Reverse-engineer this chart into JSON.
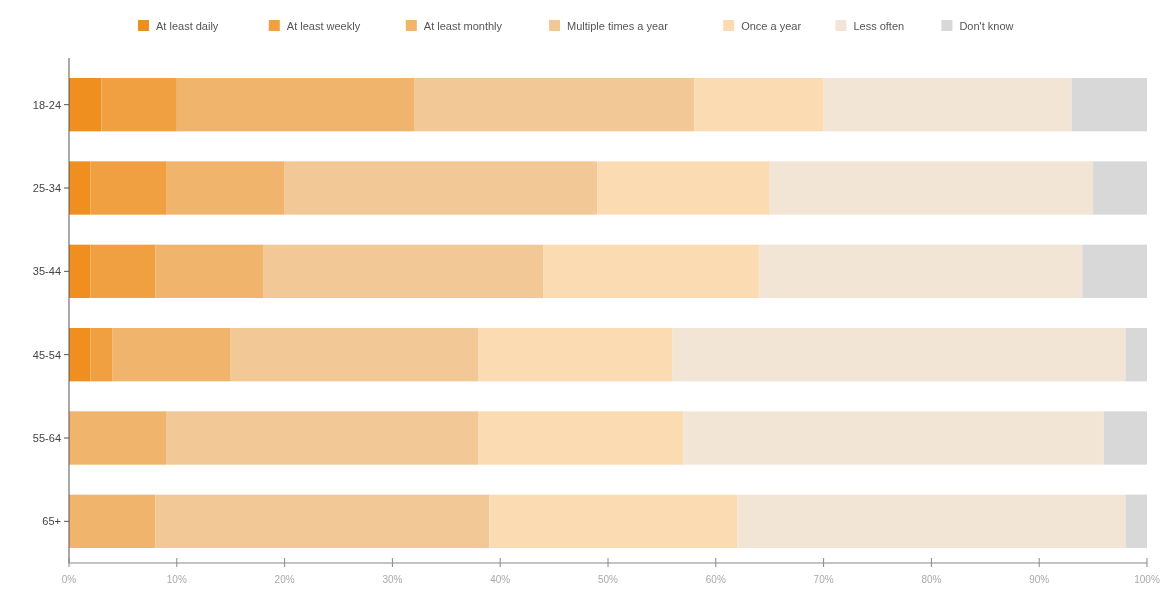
{
  "chart_data": {
    "type": "bar",
    "orientation": "horizontal",
    "stacked": true,
    "categories": [
      "18-24",
      "25-34",
      "35-44",
      "45-54",
      "55-64",
      "65+"
    ],
    "series": [
      {
        "name": "At least daily",
        "color": "#ef8f1f",
        "values": [
          3,
          2,
          2,
          2,
          0,
          0
        ]
      },
      {
        "name": "At least weekly",
        "color": "#f0a040",
        "values": [
          7,
          7,
          6,
          2,
          0,
          0
        ]
      },
      {
        "name": "At least monthly",
        "color": "#f0b46c",
        "values": [
          22,
          11,
          10,
          11,
          9,
          8
        ]
      },
      {
        "name": "Multiple times a year",
        "color": "#f2c897",
        "values": [
          26,
          29,
          26,
          23,
          29,
          31
        ]
      },
      {
        "name": "Once a year",
        "color": "#fbdbb2",
        "values": [
          12,
          16,
          20,
          18,
          19,
          23
        ]
      },
      {
        "name": "Less often",
        "color": "#f3e5d5",
        "values": [
          23,
          30,
          30,
          42,
          39,
          36
        ]
      },
      {
        "name": "Don't know",
        "color": "#d8d8d8",
        "values": [
          7,
          5,
          6,
          2,
          4,
          2
        ]
      }
    ],
    "xlim": [
      0,
      100
    ],
    "xticks": [
      {
        "value": 0,
        "label": "0%"
      },
      {
        "value": 10,
        "label": "10%"
      },
      {
        "value": 20,
        "label": "20%"
      },
      {
        "value": 30,
        "label": "30%"
      },
      {
        "value": 40,
        "label": "40%"
      },
      {
        "value": 50,
        "label": "50%"
      },
      {
        "value": 60,
        "label": "60%"
      },
      {
        "value": 70,
        "label": "70%"
      },
      {
        "value": 80,
        "label": "80%"
      },
      {
        "value": 90,
        "label": "90%"
      },
      {
        "value": 100,
        "label": "100%"
      }
    ],
    "legend": "top"
  }
}
